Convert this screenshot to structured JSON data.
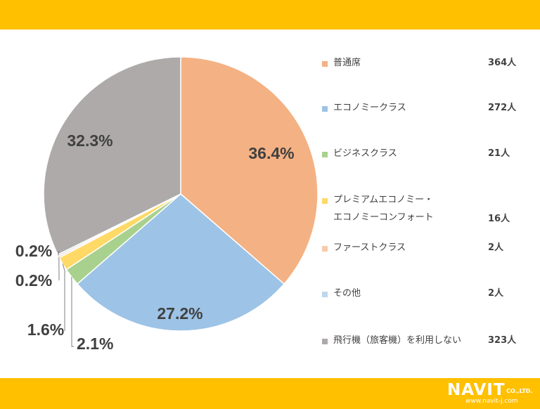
{
  "colors": {
    "banner": "#FFC000",
    "text": "#404040",
    "leader": "#7f7f7f"
  },
  "chart_data": {
    "type": "pie",
    "title": "",
    "start_angle_deg": 0,
    "direction": "clockwise",
    "slices": [
      {
        "label": "普通席",
        "count": "364人",
        "value": 36.4,
        "pct_label": "36.4%",
        "color": "#F4B183"
      },
      {
        "label": "エコノミークラス",
        "count": "272人",
        "value": 27.2,
        "pct_label": "27.2%",
        "color": "#9DC3E6"
      },
      {
        "label": "ビジネスクラス",
        "count": "21人",
        "value": 2.1,
        "pct_label": "2.1%",
        "color": "#A9D18E"
      },
      {
        "label": "プレミアムエコノミー・エコノミーコンフォート",
        "count": "16人",
        "value": 1.6,
        "pct_label": "1.6%",
        "color": "#FFD966"
      },
      {
        "label": "ファーストクラス",
        "count": "2人",
        "value": 0.2,
        "pct_label": "0.2%",
        "color": "#F8CBAD"
      },
      {
        "label": "その他",
        "count": "2人",
        "value": 0.2,
        "pct_label": "0.2%",
        "color": "#BDD7EE"
      },
      {
        "label": "飛行機（旅客機）を利用しない",
        "count": "323人",
        "value": 32.3,
        "pct_label": "32.3%",
        "color": "#AEAAAA"
      }
    ]
  },
  "legend": {
    "items": [
      {
        "label_lines": [
          "普通席"
        ],
        "count": "364人",
        "color": "#F4B183"
      },
      {
        "label_lines": [
          "エコノミークラス"
        ],
        "count": "272人",
        "color": "#9DC3E6"
      },
      {
        "label_lines": [
          "ビジネスクラス"
        ],
        "count": "21人",
        "color": "#A9D18E"
      },
      {
        "label_lines": [
          "プレミアムエコノミー・",
          "エコノミーコンフォート"
        ],
        "count": "16人",
        "color": "#FFD966"
      },
      {
        "label_lines": [
          "ファーストクラス"
        ],
        "count": "2人",
        "color": "#F8CBAD"
      },
      {
        "label_lines": [
          "その他"
        ],
        "count": "2人",
        "color": "#BDD7EE"
      },
      {
        "label_lines": [
          "飛行機（旅客機）を利用しない"
        ],
        "count": "323人",
        "color": "#AEAAAA"
      }
    ]
  },
  "logo": {
    "name": "NAVIT",
    "suffix": "CO.,LTD.",
    "url": "www.navit-j.com"
  }
}
